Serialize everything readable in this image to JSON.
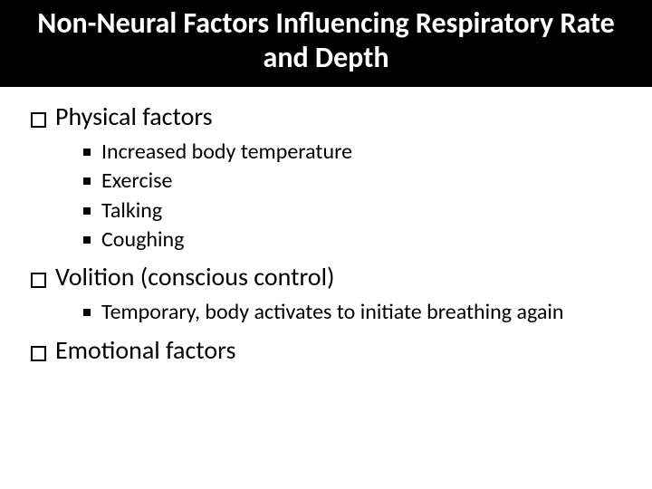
{
  "title": "Non-Neural Factors Influencing Respiratory Rate and Depth",
  "sections": [
    {
      "heading": "Physical factors",
      "items": [
        "Increased body temperature",
        "Exercise",
        "Talking",
        "Coughing"
      ]
    },
    {
      "heading": "Volition (conscious control)",
      "items": [
        "Temporary, body activates to initiate breathing again"
      ]
    },
    {
      "heading": "Emotional factors",
      "items": []
    }
  ],
  "colors": {
    "title_bg": "#000000",
    "title_text": "#ffffff",
    "body_bg": "#ffffff",
    "body_text": "#000000"
  },
  "fonts": {
    "title_size_pt": 32,
    "lvl1_size_pt": 28,
    "lvl2_size_pt": 24
  }
}
